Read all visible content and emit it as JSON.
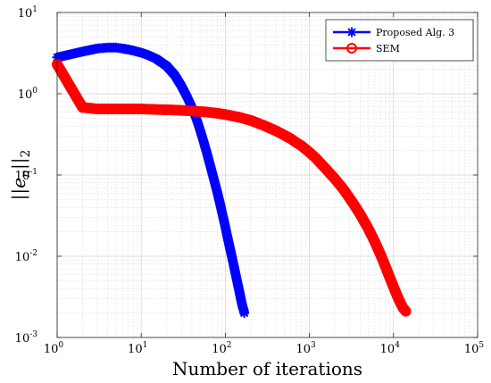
{
  "chart_data": {
    "type": "line",
    "xscale": "log",
    "yscale": "log",
    "xlim": [
      1,
      100000
    ],
    "ylim": [
      0.001,
      10
    ],
    "xlabel": "Number of iterations",
    "ylabel": "||e_n||_2",
    "grid": true,
    "minor_grid": true,
    "legend_position": "top-right",
    "x_ticks": [
      {
        "base": "10",
        "exp": "0"
      },
      {
        "base": "10",
        "exp": "1"
      },
      {
        "base": "10",
        "exp": "2"
      },
      {
        "base": "10",
        "exp": "3"
      },
      {
        "base": "10",
        "exp": "4"
      },
      {
        "base": "10",
        "exp": "5"
      }
    ],
    "y_ticks": [
      {
        "base": "10",
        "exp": "-3"
      },
      {
        "base": "10",
        "exp": "-2"
      },
      {
        "base": "10",
        "exp": "-1"
      },
      {
        "base": "10",
        "exp": "0"
      },
      {
        "base": "10",
        "exp": "1"
      }
    ],
    "series": [
      {
        "name": "Proposed Alg. 3",
        "color": "#0000ff",
        "marker": "asterisk",
        "x": [
          1,
          2,
          3,
          4,
          5,
          6,
          7,
          8,
          10,
          12,
          15,
          20,
          25,
          30,
          35,
          40,
          45,
          50,
          55,
          60,
          65,
          70,
          75,
          80,
          85,
          90,
          95,
          100,
          105,
          110,
          115,
          120,
          125,
          130,
          135,
          140,
          145,
          150,
          155,
          160,
          165,
          168
        ],
        "y": [
          2.8,
          3.3,
          3.6,
          3.7,
          3.7,
          3.6,
          3.5,
          3.4,
          3.2,
          3.0,
          2.7,
          2.2,
          1.7,
          1.25,
          0.92,
          0.68,
          0.5,
          0.36,
          0.26,
          0.19,
          0.14,
          0.105,
          0.08,
          0.062,
          0.048,
          0.037,
          0.029,
          0.023,
          0.018,
          0.0145,
          0.0118,
          0.0097,
          0.008,
          0.0066,
          0.0055,
          0.0046,
          0.0039,
          0.0033,
          0.0028,
          0.0024,
          0.0022,
          0.002
        ]
      },
      {
        "name": "SEM",
        "color": "#ff0000",
        "marker": "circle",
        "x": [
          1,
          2,
          3,
          4,
          5,
          6,
          7,
          8,
          9,
          10,
          12,
          15,
          20,
          30,
          40,
          50,
          60,
          70,
          80,
          100,
          120,
          150,
          200,
          250,
          300,
          400,
          500,
          600,
          700,
          800,
          1000,
          1200,
          1500,
          2000,
          2500,
          3000,
          3500,
          4000,
          5000,
          6000,
          7000,
          8000,
          9000,
          10000,
          11000,
          12000,
          13000,
          14000
        ],
        "y": [
          2.3,
          0.68,
          0.65,
          0.65,
          0.65,
          0.65,
          0.65,
          0.65,
          0.65,
          0.65,
          0.645,
          0.64,
          0.635,
          0.625,
          0.615,
          0.605,
          0.595,
          0.585,
          0.575,
          0.555,
          0.535,
          0.51,
          0.47,
          0.43,
          0.4,
          0.35,
          0.31,
          0.28,
          0.25,
          0.23,
          0.19,
          0.16,
          0.125,
          0.09,
          0.068,
          0.052,
          0.041,
          0.033,
          0.022,
          0.015,
          0.0105,
          0.0075,
          0.0055,
          0.0042,
          0.0033,
          0.0027,
          0.0023,
          0.0021
        ]
      }
    ]
  }
}
